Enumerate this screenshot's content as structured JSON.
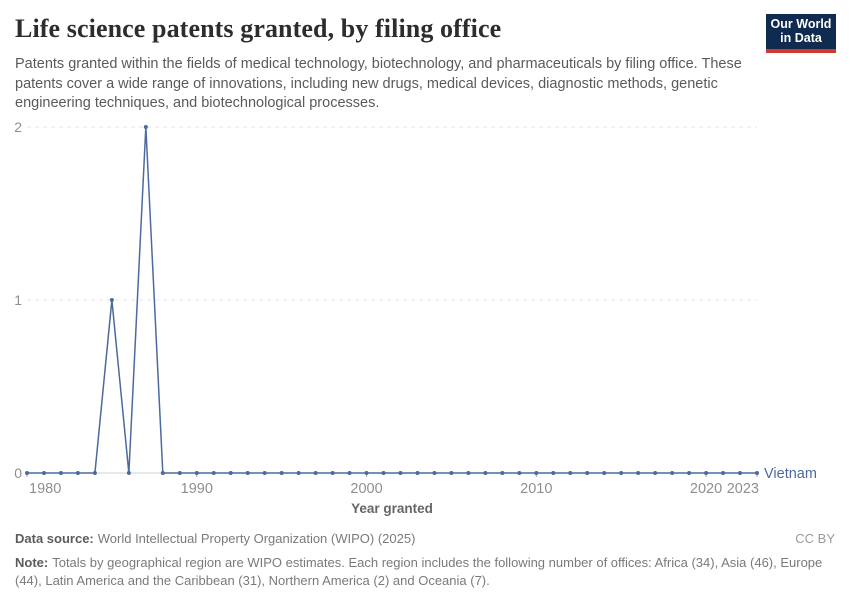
{
  "header": {
    "title": "Life science patents granted, by filing office",
    "subtitle": "Patents granted within the fields of medical technology, biotechnology, and pharmaceuticals by filing office. These patents cover a wide range of innovations, including new drugs, medical devices, diagnostic methods, genetic engineering techniques, and biotechnological processes.",
    "logo": {
      "line1": "Our World",
      "line2": "in Data"
    }
  },
  "chart_data": {
    "type": "line",
    "title": "Life science patents granted, by filing office",
    "xlabel": "Year granted",
    "ylabel": "",
    "x_range": [
      1980,
      2023
    ],
    "ylim": [
      0,
      2
    ],
    "y_ticks": [
      0,
      1,
      2
    ],
    "x_ticks": [
      1980,
      1990,
      2000,
      2010,
      2020,
      2023
    ],
    "grid": "horizontal-dashed",
    "legend_position": "end-of-line-label",
    "series": [
      {
        "name": "Vietnam",
        "color": "#4c6a9e",
        "x": [
          1980,
          1981,
          1982,
          1983,
          1984,
          1985,
          1986,
          1987,
          1988,
          1989,
          1990,
          1991,
          1992,
          1993,
          1994,
          1995,
          1996,
          1997,
          1998,
          1999,
          2000,
          2001,
          2002,
          2003,
          2004,
          2005,
          2006,
          2007,
          2008,
          2009,
          2010,
          2011,
          2012,
          2013,
          2014,
          2015,
          2016,
          2017,
          2018,
          2019,
          2020,
          2021,
          2022,
          2023
        ],
        "values": [
          0,
          0,
          0,
          0,
          0,
          1,
          0,
          2,
          0,
          0,
          0,
          0,
          0,
          0,
          0,
          0,
          0,
          0,
          0,
          0,
          0,
          0,
          0,
          0,
          0,
          0,
          0,
          0,
          0,
          0,
          0,
          0,
          0,
          0,
          0,
          0,
          0,
          0,
          0,
          0,
          0,
          0,
          0,
          0
        ]
      }
    ]
  },
  "footer": {
    "datasource_label": "Data source:",
    "datasource": "World Intellectual Property Organization (WIPO) (2025)",
    "license": "CC BY",
    "note_label": "Note:",
    "note": "Totals by geographical region are WIPO estimates. Each region includes the following number of offices: Africa (34), Asia (46), Europe (44), Latin America and the Caribbean (31), Northern America (2) and Oceania (7)."
  },
  "colors": {
    "line": "#4c6a9e",
    "gridline": "#e4e4e4",
    "axis_line": "#d2d2d2",
    "tick_label": "#8f8f8f",
    "axis_title": "#666666",
    "title_text": "#2d2d2d",
    "subtitle_text": "#5a5a5a",
    "logo_bg": "#0f2b50",
    "logo_stripe": "#d13832"
  }
}
